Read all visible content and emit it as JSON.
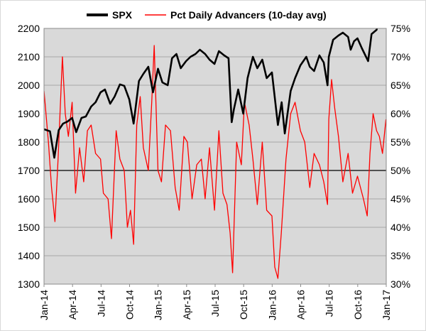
{
  "chart_data": {
    "type": "line",
    "title": "",
    "xlabel": "",
    "ylabel": "",
    "grid": true,
    "legend_position": "top",
    "x_range": [
      "2014-01-01",
      "2017-01-01"
    ],
    "x_ticks": [
      "Jan-14",
      "Apr-14",
      "Jul-14",
      "Oct-14",
      "Jan-15",
      "Apr-15",
      "Jul-15",
      "Oct-15",
      "Jan-16",
      "Apr-16",
      "Jul-16",
      "Oct-16",
      "Jan-17"
    ],
    "y_left": {
      "min": 1300,
      "max": 2200,
      "ticks": [
        "2200",
        "2100",
        "2000",
        "1900",
        "1800",
        "1700",
        "1600",
        "1500",
        "1400",
        "1300"
      ]
    },
    "y_right": {
      "min": 30,
      "max": 75,
      "unit": "%",
      "ticks": [
        "75%",
        "70%",
        "65%",
        "60%",
        "55%",
        "50%",
        "45%",
        "40%",
        "35%",
        "30%"
      ]
    },
    "reference_line": {
      "axis": "right",
      "value": 50
    },
    "colors": {
      "plot_bg": "#d9d9d9",
      "grid": "#a6a6a6",
      "spx": "#000000",
      "advancers": "#ff0000",
      "reference_line": "#000000"
    },
    "series": [
      {
        "name": "SPX",
        "axis": "left",
        "points": [
          [
            "2014-01-01",
            1845
          ],
          [
            "2014-01-20",
            1838
          ],
          [
            "2014-02-03",
            1745
          ],
          [
            "2014-02-17",
            1842
          ],
          [
            "2014-03-03",
            1865
          ],
          [
            "2014-03-17",
            1872
          ],
          [
            "2014-04-01",
            1885
          ],
          [
            "2014-04-14",
            1835
          ],
          [
            "2014-05-01",
            1885
          ],
          [
            "2014-05-15",
            1890
          ],
          [
            "2014-06-01",
            1925
          ],
          [
            "2014-06-15",
            1940
          ],
          [
            "2014-07-01",
            1975
          ],
          [
            "2014-07-15",
            1985
          ],
          [
            "2014-08-01",
            1935
          ],
          [
            "2014-08-15",
            1960
          ],
          [
            "2014-09-01",
            2003
          ],
          [
            "2014-09-15",
            1998
          ],
          [
            "2014-10-01",
            1950
          ],
          [
            "2014-10-15",
            1865
          ],
          [
            "2014-11-01",
            2015
          ],
          [
            "2014-11-15",
            2040
          ],
          [
            "2014-12-01",
            2065
          ],
          [
            "2014-12-16",
            1975
          ],
          [
            "2015-01-01",
            2058
          ],
          [
            "2015-01-15",
            2010
          ],
          [
            "2015-02-01",
            2000
          ],
          [
            "2015-02-15",
            2095
          ],
          [
            "2015-03-01",
            2110
          ],
          [
            "2015-03-15",
            2060
          ],
          [
            "2015-04-01",
            2085
          ],
          [
            "2015-04-15",
            2100
          ],
          [
            "2015-05-01",
            2110
          ],
          [
            "2015-05-15",
            2125
          ],
          [
            "2015-06-01",
            2110
          ],
          [
            "2015-06-15",
            2090
          ],
          [
            "2015-07-01",
            2075
          ],
          [
            "2015-07-15",
            2120
          ],
          [
            "2015-08-01",
            2105
          ],
          [
            "2015-08-15",
            2095
          ],
          [
            "2015-08-25",
            1870
          ],
          [
            "2015-09-01",
            1915
          ],
          [
            "2015-09-15",
            1985
          ],
          [
            "2015-10-01",
            1900
          ],
          [
            "2015-10-15",
            2025
          ],
          [
            "2015-11-01",
            2100
          ],
          [
            "2015-11-15",
            2060
          ],
          [
            "2015-12-01",
            2090
          ],
          [
            "2015-12-15",
            2025
          ],
          [
            "2016-01-01",
            2045
          ],
          [
            "2016-01-20",
            1860
          ],
          [
            "2016-02-01",
            1940
          ],
          [
            "2016-02-11",
            1830
          ],
          [
            "2016-03-01",
            1980
          ],
          [
            "2016-03-15",
            2025
          ],
          [
            "2016-04-01",
            2070
          ],
          [
            "2016-04-20",
            2100
          ],
          [
            "2016-05-01",
            2065
          ],
          [
            "2016-05-15",
            2050
          ],
          [
            "2016-06-01",
            2105
          ],
          [
            "2016-06-15",
            2080
          ],
          [
            "2016-06-27",
            2000
          ],
          [
            "2016-07-01",
            2100
          ],
          [
            "2016-07-15",
            2160
          ],
          [
            "2016-08-01",
            2175
          ],
          [
            "2016-08-15",
            2185
          ],
          [
            "2016-09-01",
            2170
          ],
          [
            "2016-09-09",
            2125
          ],
          [
            "2016-09-20",
            2155
          ],
          [
            "2016-10-01",
            2165
          ],
          [
            "2016-10-15",
            2130
          ],
          [
            "2016-11-04",
            2085
          ],
          [
            "2016-11-15",
            2180
          ],
          [
            "2016-12-01",
            2195
          ],
          [
            "2016-12-15",
            2260
          ],
          [
            "2016-12-31",
            2240
          ]
        ]
      },
      {
        "name": "Pct Daily Advancers (10-day avg)",
        "axis": "right",
        "points": [
          [
            "2014-01-01",
            64
          ],
          [
            "2014-01-15",
            55
          ],
          [
            "2014-01-25",
            47
          ],
          [
            "2014-02-05",
            41
          ],
          [
            "2014-02-15",
            52
          ],
          [
            "2014-03-01",
            70
          ],
          [
            "2014-03-10",
            60
          ],
          [
            "2014-03-20",
            56
          ],
          [
            "2014-04-01",
            62
          ],
          [
            "2014-04-12",
            46
          ],
          [
            "2014-04-25",
            54
          ],
          [
            "2014-05-08",
            48
          ],
          [
            "2014-05-20",
            57
          ],
          [
            "2014-06-01",
            58
          ],
          [
            "2014-06-15",
            53
          ],
          [
            "2014-07-01",
            52
          ],
          [
            "2014-07-10",
            46
          ],
          [
            "2014-07-25",
            45
          ],
          [
            "2014-08-05",
            38
          ],
          [
            "2014-08-20",
            57
          ],
          [
            "2014-09-01",
            52
          ],
          [
            "2014-09-15",
            50
          ],
          [
            "2014-09-25",
            40
          ],
          [
            "2014-10-05",
            43
          ],
          [
            "2014-10-15",
            37
          ],
          [
            "2014-10-25",
            58
          ],
          [
            "2014-11-05",
            63
          ],
          [
            "2014-11-15",
            54
          ],
          [
            "2014-12-01",
            50
          ],
          [
            "2014-12-12",
            62
          ],
          [
            "2014-12-20",
            72
          ],
          [
            "2015-01-01",
            50
          ],
          [
            "2015-01-12",
            48
          ],
          [
            "2015-01-25",
            58
          ],
          [
            "2015-02-10",
            57
          ],
          [
            "2015-02-25",
            47
          ],
          [
            "2015-03-10",
            43
          ],
          [
            "2015-03-25",
            56
          ],
          [
            "2015-04-05",
            55
          ],
          [
            "2015-04-20",
            45
          ],
          [
            "2015-05-05",
            51
          ],
          [
            "2015-05-20",
            52
          ],
          [
            "2015-06-01",
            45
          ],
          [
            "2015-06-15",
            54
          ],
          [
            "2015-07-01",
            43
          ],
          [
            "2015-07-15",
            57
          ],
          [
            "2015-07-28",
            46
          ],
          [
            "2015-08-10",
            44
          ],
          [
            "2015-08-20",
            39
          ],
          [
            "2015-08-28",
            32
          ],
          [
            "2015-09-10",
            55
          ],
          [
            "2015-09-25",
            51
          ],
          [
            "2015-10-05",
            62
          ],
          [
            "2015-10-20",
            58
          ],
          [
            "2015-11-01",
            52
          ],
          [
            "2015-11-15",
            44
          ],
          [
            "2015-12-01",
            55
          ],
          [
            "2015-12-15",
            43
          ],
          [
            "2016-01-01",
            42
          ],
          [
            "2016-01-10",
            33
          ],
          [
            "2016-01-20",
            31
          ],
          [
            "2016-01-31",
            39
          ],
          [
            "2016-02-15",
            52
          ],
          [
            "2016-03-01",
            60
          ],
          [
            "2016-03-15",
            62
          ],
          [
            "2016-04-01",
            57
          ],
          [
            "2016-04-15",
            55
          ],
          [
            "2016-05-01",
            47
          ],
          [
            "2016-05-15",
            53
          ],
          [
            "2016-06-01",
            51
          ],
          [
            "2016-06-15",
            48
          ],
          [
            "2016-06-27",
            44
          ],
          [
            "2016-07-01",
            59
          ],
          [
            "2016-07-10",
            66
          ],
          [
            "2016-07-20",
            61
          ],
          [
            "2016-08-01",
            56
          ],
          [
            "2016-08-15",
            48
          ],
          [
            "2016-09-01",
            53
          ],
          [
            "2016-09-15",
            46
          ],
          [
            "2016-10-01",
            49
          ],
          [
            "2016-10-20",
            45
          ],
          [
            "2016-11-01",
            42
          ],
          [
            "2016-11-10",
            53
          ],
          [
            "2016-11-20",
            60
          ],
          [
            "2016-12-01",
            57
          ],
          [
            "2016-12-10",
            56
          ],
          [
            "2016-12-20",
            53
          ],
          [
            "2016-12-31",
            59
          ]
        ]
      }
    ]
  }
}
